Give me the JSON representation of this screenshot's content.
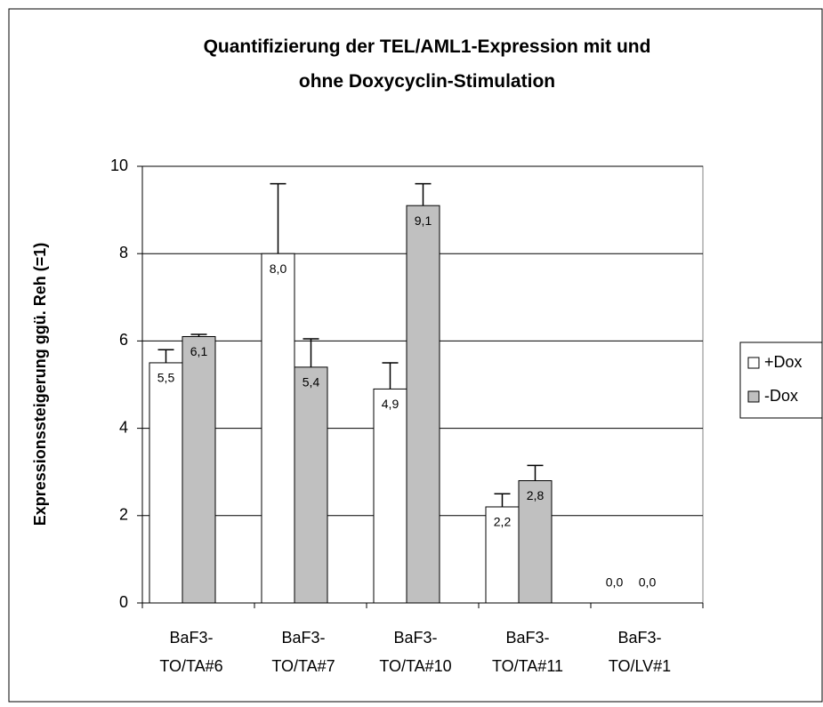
{
  "chart_data": {
    "type": "bar",
    "title": "Quantifizierung der TEL/AML1-Expression mit und ohne Doxycyclin-Stimulation",
    "ylabel": "Expressionssteigerung ggü. Reh (=1)",
    "categories": [
      "BaF3-\nTO/TA#6",
      "BaF3-\nTO/TA#7",
      "BaF3-\nTO/TA#10",
      "BaF3-\nTO/TA#11",
      "BaF3-\nTO/LV#1"
    ],
    "series": [
      {
        "name": "+Dox",
        "color": "#ffffff",
        "values": [
          5.5,
          8.0,
          4.9,
          2.2,
          0.0
        ],
        "value_labels": [
          "5,5",
          "8,0",
          "4,9",
          "2,2",
          "0,0"
        ],
        "errors": [
          0.3,
          1.6,
          0.6,
          0.3,
          0.0
        ]
      },
      {
        "name": "-Dox",
        "color": "#c0c0c0",
        "values": [
          6.1,
          5.4,
          9.1,
          2.8,
          0.0
        ],
        "value_labels": [
          "6,1",
          "5,4",
          "9,1",
          "2,8",
          "0,0"
        ],
        "errors": [
          0.05,
          0.65,
          0.5,
          0.35,
          0.0
        ]
      }
    ],
    "ylim": [
      0,
      10
    ],
    "yticks": [
      0,
      2,
      4,
      6,
      8,
      10
    ],
    "grid": true,
    "legend": "right"
  }
}
